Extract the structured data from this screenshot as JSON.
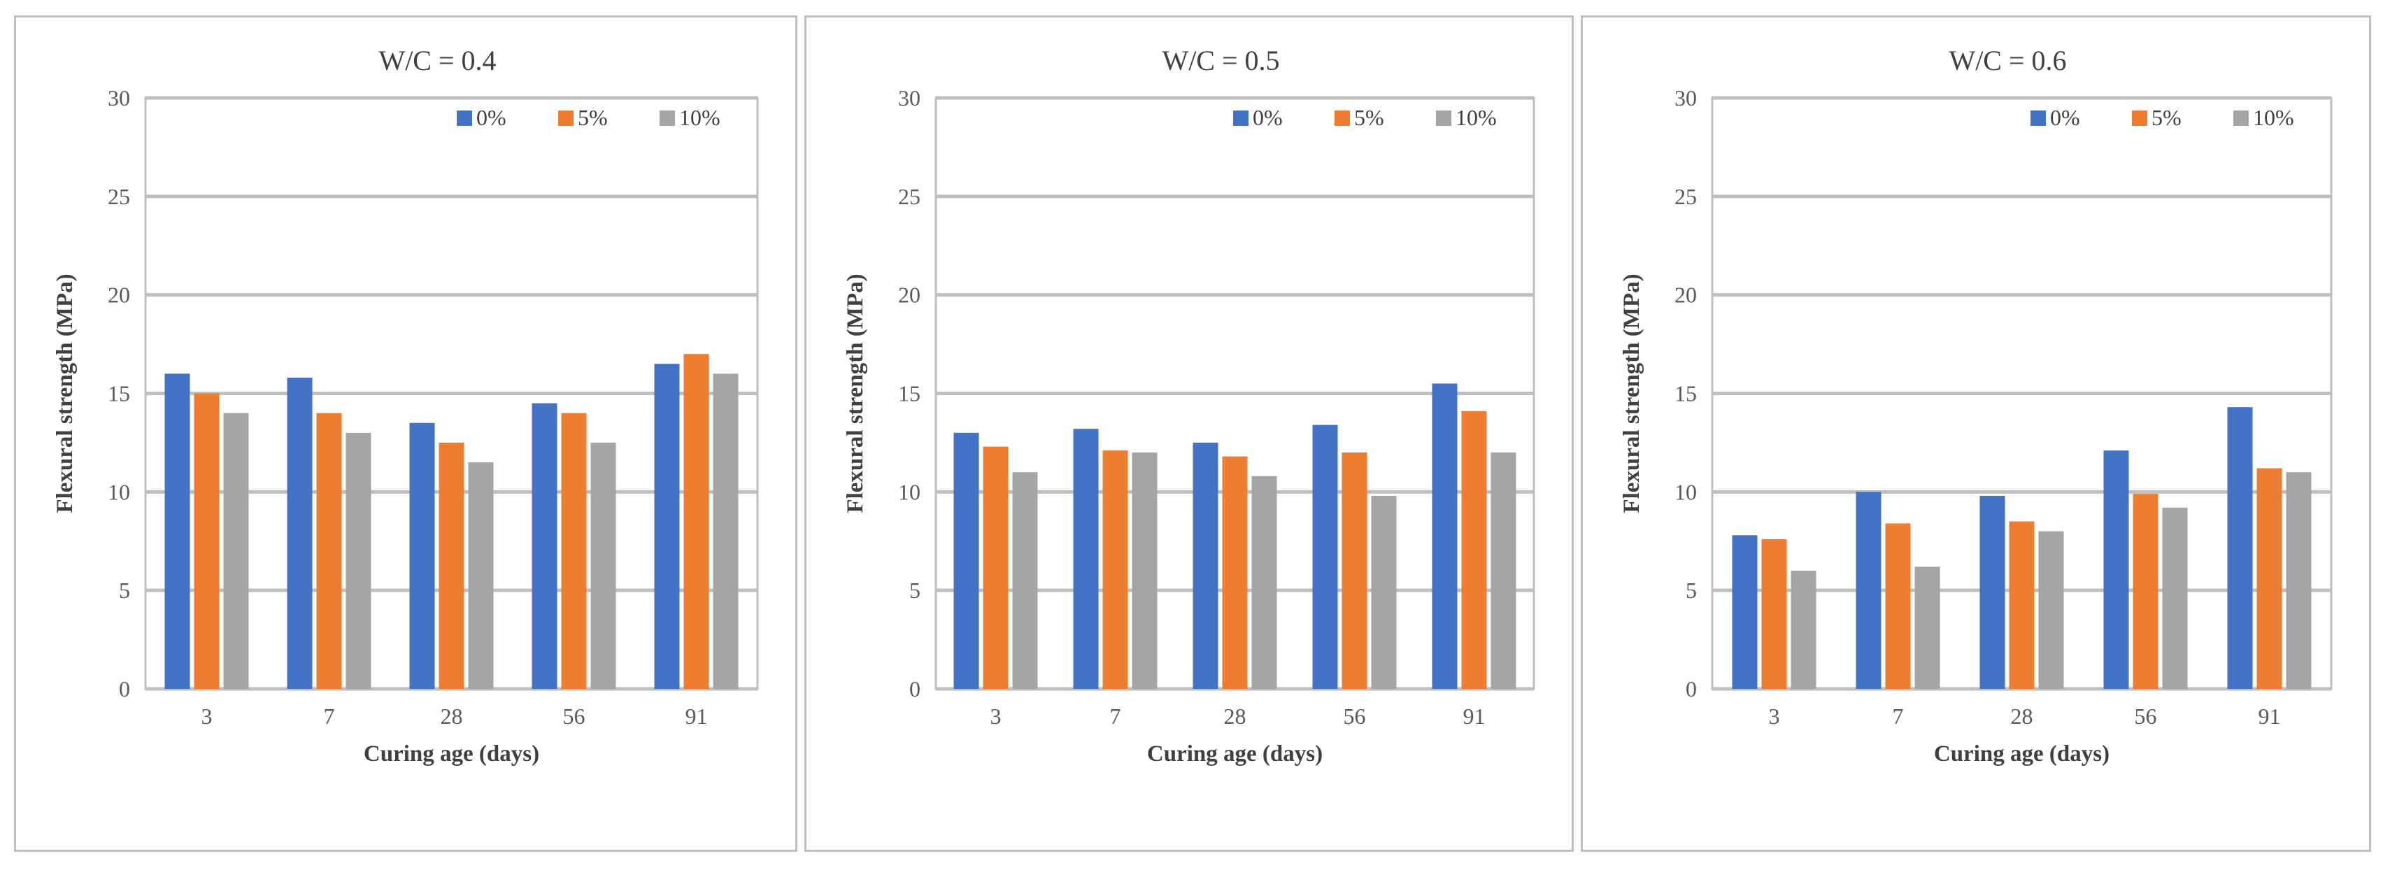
{
  "figure": {
    "colors": {
      "0%": "#4472c4",
      "5%": "#ed7d31",
      "10%": "#a5a5a5"
    },
    "gridline_color": "#bfbfbf",
    "frame_color": "#bfbfbf"
  },
  "chart_data": [
    {
      "type": "bar",
      "title": "W/C = 0.4",
      "xlabel": "Curing age (days)",
      "ylabel": "Flexural strength (MPa)",
      "ylim": [
        0,
        30
      ],
      "yticks": [
        0,
        5,
        10,
        15,
        20,
        25,
        30
      ],
      "categories": [
        "3",
        "7",
        "28",
        "56",
        "91"
      ],
      "legend_position": "top-right",
      "series": [
        {
          "name": "0%",
          "values": [
            16.0,
            15.8,
            13.5,
            14.5,
            16.5
          ]
        },
        {
          "name": "5%",
          "values": [
            15.0,
            14.0,
            12.5,
            14.0,
            17.0
          ]
        },
        {
          "name": "10%",
          "values": [
            14.0,
            13.0,
            11.5,
            12.5,
            16.0
          ]
        }
      ]
    },
    {
      "type": "bar",
      "title": "W/C = 0.5",
      "xlabel": "Curing age (days)",
      "ylabel": "Flexural strength (MPa)",
      "ylim": [
        0,
        30
      ],
      "yticks": [
        0,
        5,
        10,
        15,
        20,
        25,
        30
      ],
      "categories": [
        "3",
        "7",
        "28",
        "56",
        "91"
      ],
      "legend_position": "top-right",
      "series": [
        {
          "name": "0%",
          "values": [
            13.0,
            13.2,
            12.5,
            13.4,
            15.5
          ]
        },
        {
          "name": "5%",
          "values": [
            12.3,
            12.1,
            11.8,
            12.0,
            14.1
          ]
        },
        {
          "name": "10%",
          "values": [
            11.0,
            12.0,
            10.8,
            9.8,
            12.0
          ]
        }
      ]
    },
    {
      "type": "bar",
      "title": "W/C = 0.6",
      "xlabel": "Curing age (days)",
      "ylabel": "Flexural strength (MPa)",
      "ylim": [
        0,
        30
      ],
      "yticks": [
        0,
        5,
        10,
        15,
        20,
        25,
        30
      ],
      "categories": [
        "3",
        "7",
        "28",
        "56",
        "91"
      ],
      "legend_position": "top-right",
      "series": [
        {
          "name": "0%",
          "values": [
            7.8,
            10.0,
            9.8,
            12.1,
            14.3
          ]
        },
        {
          "name": "5%",
          "values": [
            7.6,
            8.4,
            8.5,
            9.9,
            11.2
          ]
        },
        {
          "name": "10%",
          "values": [
            6.0,
            6.2,
            8.0,
            9.2,
            11.0
          ]
        }
      ]
    }
  ]
}
